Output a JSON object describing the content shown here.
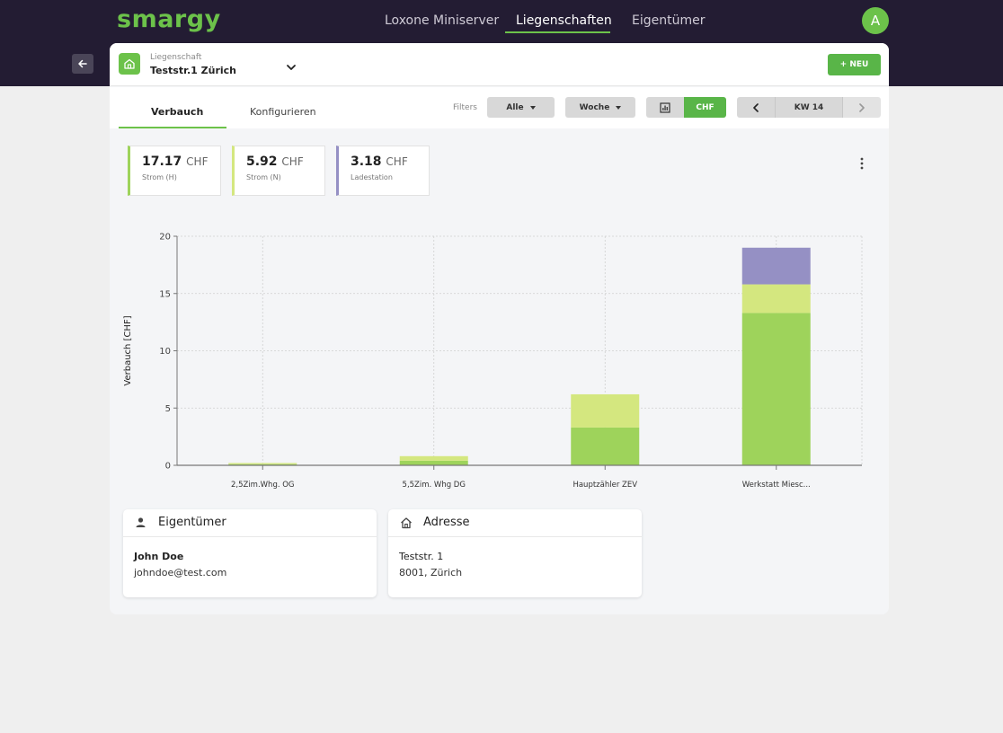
{
  "app": {
    "logo": "smargy",
    "avatar_initial": "A"
  },
  "nav": {
    "items": [
      "Loxone Miniserver",
      "Liegenschaften",
      "Eigentümer"
    ],
    "active": "Liegenschaften"
  },
  "property": {
    "label": "Liegenschaft",
    "name": "Teststr.1 Zürich"
  },
  "buttons": {
    "new": "+ NEU"
  },
  "tabs": {
    "items": [
      "Verbauch",
      "Konfigurieren"
    ],
    "active": "Verbauch"
  },
  "filters": {
    "label": "Filters",
    "all": "Alle",
    "period": "Woche",
    "unit_toggle": "CHF",
    "week": "KW 14"
  },
  "kpis": [
    {
      "value": "17.17",
      "unit": "CHF",
      "label": "Strom (H)",
      "color": "#9ed35b"
    },
    {
      "value": "5.92",
      "unit": "CHF",
      "label": "Strom (N)",
      "color": "#d4e77f"
    },
    {
      "value": "3.18",
      "unit": "CHF",
      "label": "Ladestation",
      "color": "#9590c4"
    }
  ],
  "chart_data": {
    "type": "bar",
    "stacked": true,
    "categories": [
      "2,5Zim.Whg. OG",
      "5,5Zim. Whg DG",
      "Hauptzähler ZEV",
      "Werkstatt Miesc..."
    ],
    "series": [
      {
        "name": "Strom (H)",
        "color": "#9ed35b",
        "values": [
          0.1,
          0.4,
          3.3,
          13.3
        ]
      },
      {
        "name": "Strom (N)",
        "color": "#d4e77f",
        "values": [
          0.1,
          0.4,
          2.9,
          2.5
        ]
      },
      {
        "name": "Ladestation",
        "color": "#9590c4",
        "values": [
          0,
          0,
          0,
          3.2
        ]
      }
    ],
    "ylabel": "Verbauch [CHF]",
    "xlabel": "",
    "ylim": [
      0,
      20
    ],
    "yticks": [
      0,
      5,
      10,
      15,
      20
    ],
    "grid": true
  },
  "owner": {
    "title": "Eigentümer",
    "name": "John Doe",
    "email": "johndoe@test.com"
  },
  "address": {
    "title": "Adresse",
    "street": "Teststr. 1",
    "city": "8001, Zürich"
  }
}
